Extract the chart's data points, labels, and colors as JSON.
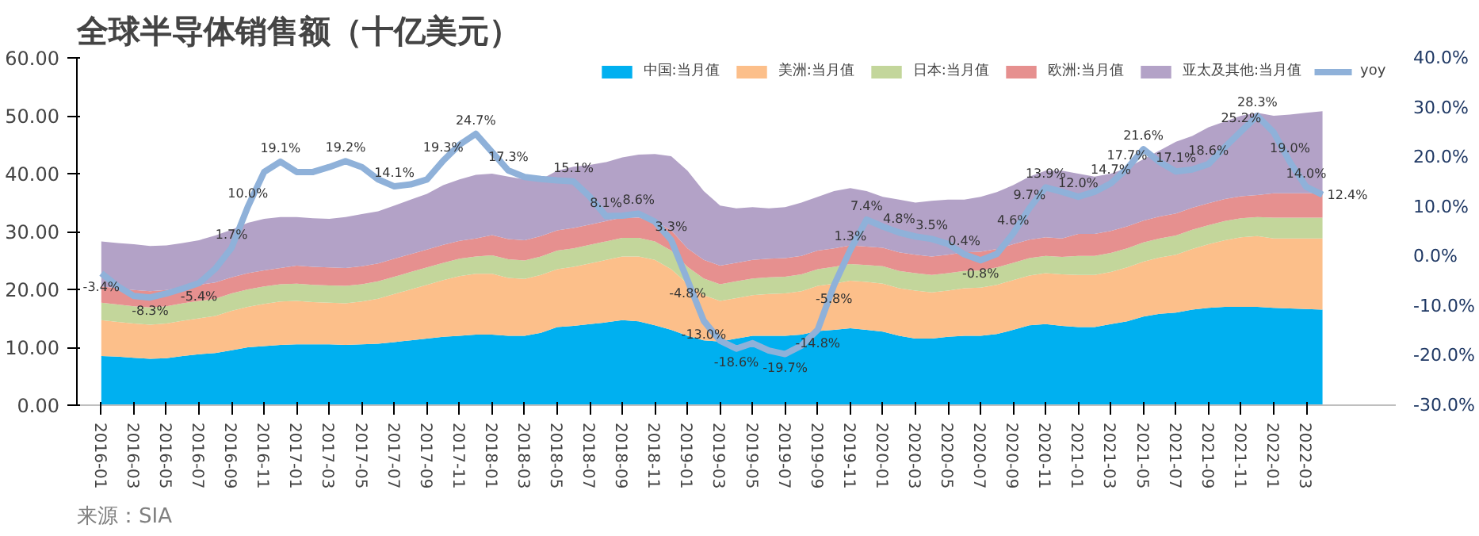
{
  "chart_data": {
    "type": "area",
    "stacked": true,
    "title": "全球半导体销售额（十亿美元）",
    "annotations": [
      "来源：SIA"
    ],
    "categories": [
      "2016-01",
      null,
      "2016-03",
      null,
      "2016-05",
      null,
      "2016-07",
      null,
      "2016-09",
      null,
      "2016-11",
      null,
      "2017-01",
      null,
      "2017-03",
      null,
      "2017-05",
      null,
      "2017-07",
      null,
      "2017-09",
      null,
      "2017-11",
      null,
      "2018-01",
      null,
      "2018-03",
      null,
      "2018-05",
      null,
      "2018-07",
      null,
      "2018-09",
      null,
      "2018-11",
      null,
      "2019-01",
      null,
      "2019-03",
      null,
      "2019-05",
      null,
      "2019-07",
      null,
      "2019-09",
      null,
      "2019-11",
      null,
      "2020-01",
      null,
      "2020-03",
      null,
      "2020-05",
      null,
      "2020-07",
      null,
      "2020-09",
      null,
      "2020-11",
      null,
      "2021-01",
      null,
      "2021-03",
      null,
      "2021-05",
      null,
      "2021-07",
      null,
      "2021-09",
      null,
      "2021-11",
      null,
      "2022-01",
      null,
      "2022-03",
      null
    ],
    "series": [
      {
        "name": "中国:当月值",
        "color": "#00b0f0",
        "values": [
          8.5,
          8.4,
          8.2,
          8.0,
          8.1,
          8.5,
          8.8,
          9.0,
          9.5,
          10.0,
          10.2,
          10.4,
          10.5,
          10.5,
          10.5,
          10.4,
          10.5,
          10.6,
          10.9,
          11.2,
          11.5,
          11.8,
          12.0,
          12.2,
          12.2,
          12.0,
          12.0,
          12.5,
          13.5,
          13.7,
          14.0,
          14.3,
          14.7,
          14.5,
          13.8,
          13.0,
          12.0,
          11.2,
          11.0,
          11.5,
          12.0,
          12.0,
          12.0,
          12.2,
          12.8,
          13.0,
          13.3,
          13.0,
          12.7,
          12.0,
          11.5,
          11.5,
          11.8,
          12.0,
          12.0,
          12.3,
          13.0,
          13.8,
          14.0,
          13.7,
          13.5,
          13.5,
          14.0,
          14.5,
          15.3,
          15.8,
          16.0,
          16.5,
          16.8,
          17.0,
          17.0,
          17.0,
          16.8,
          16.7,
          16.6,
          16.5
        ]
      },
      {
        "name": "美洲:当月值",
        "color": "#fcbf8a",
        "values": [
          6.2,
          6.0,
          5.9,
          5.9,
          6.0,
          6.1,
          6.2,
          6.4,
          6.8,
          7.0,
          7.3,
          7.5,
          7.5,
          7.3,
          7.2,
          7.2,
          7.4,
          7.8,
          8.3,
          8.8,
          9.3,
          9.8,
          10.3,
          10.5,
          10.5,
          10.0,
          9.8,
          10.0,
          10.0,
          10.2,
          10.5,
          10.8,
          11.0,
          11.2,
          11.3,
          10.5,
          9.0,
          7.8,
          7.0,
          7.0,
          7.0,
          7.2,
          7.3,
          7.5,
          7.8,
          8.0,
          8.2,
          8.3,
          8.3,
          8.2,
          8.3,
          8.0,
          8.0,
          8.2,
          8.3,
          8.5,
          8.6,
          8.6,
          8.8,
          8.9,
          9.0,
          9.0,
          9.0,
          9.3,
          9.5,
          9.7,
          10.0,
          10.5,
          11.0,
          11.5,
          12.0,
          12.2,
          12.0,
          12.1,
          12.2,
          12.3
        ]
      },
      {
        "name": "日本:当月值",
        "color": "#c3d69b",
        "values": [
          3.0,
          3.0,
          3.0,
          3.0,
          3.0,
          3.0,
          3.0,
          3.0,
          3.0,
          3.0,
          3.0,
          3.0,
          3.0,
          3.0,
          3.0,
          3.0,
          3.0,
          3.0,
          3.0,
          3.0,
          3.0,
          3.0,
          3.0,
          3.0,
          3.2,
          3.2,
          3.2,
          3.2,
          3.2,
          3.2,
          3.2,
          3.2,
          3.2,
          3.2,
          3.2,
          3.2,
          2.9,
          2.9,
          2.9,
          2.9,
          2.9,
          2.9,
          2.9,
          2.9,
          2.9,
          2.9,
          2.9,
          2.9,
          3.0,
          3.0,
          3.0,
          3.0,
          3.0,
          3.0,
          3.0,
          3.0,
          3.0,
          3.0,
          3.0,
          3.0,
          3.3,
          3.3,
          3.3,
          3.3,
          3.3,
          3.3,
          3.3,
          3.3,
          3.3,
          3.3,
          3.3,
          3.3,
          3.6,
          3.6,
          3.6,
          3.6
        ]
      },
      {
        "name": "欧洲:当月值",
        "color": "#e6908f",
        "values": [
          2.8,
          2.8,
          2.8,
          2.8,
          2.8,
          2.8,
          2.8,
          2.8,
          2.8,
          2.8,
          2.8,
          2.8,
          3.1,
          3.1,
          3.1,
          3.1,
          3.1,
          3.1,
          3.1,
          3.1,
          3.1,
          3.1,
          3.1,
          3.1,
          3.5,
          3.5,
          3.5,
          3.5,
          3.5,
          3.5,
          3.5,
          3.5,
          3.5,
          3.5,
          3.5,
          3.5,
          3.2,
          3.2,
          3.2,
          3.2,
          3.2,
          3.2,
          3.2,
          3.2,
          3.2,
          3.2,
          3.2,
          3.2,
          3.2,
          3.2,
          3.2,
          3.2,
          3.2,
          3.2,
          3.2,
          3.2,
          3.2,
          3.2,
          3.2,
          3.2,
          3.8,
          3.8,
          3.8,
          3.8,
          3.8,
          3.8,
          3.8,
          3.8,
          3.8,
          3.8,
          3.8,
          3.8,
          4.2,
          4.2,
          4.2,
          4.2
        ]
      },
      {
        "name": "亚太及其他:当月值",
        "color": "#b3a2c7",
        "values": [
          7.8,
          7.8,
          7.9,
          7.8,
          7.7,
          7.6,
          7.7,
          8.1,
          8.2,
          8.7,
          8.9,
          8.8,
          8.4,
          8.4,
          8.4,
          8.8,
          9.0,
          9.0,
          9.2,
          9.4,
          9.6,
          10.3,
          10.6,
          11.0,
          10.6,
          10.8,
          10.5,
          9.8,
          10.3,
          10.6,
          10.3,
          10.2,
          10.4,
          10.9,
          11.6,
          12.8,
          13.4,
          11.9,
          10.4,
          9.4,
          9.1,
          8.7,
          8.8,
          9.2,
          9.3,
          9.9,
          9.9,
          9.6,
          8.8,
          9.1,
          9.0,
          9.6,
          9.5,
          9.1,
          9.5,
          9.8,
          10.2,
          10.9,
          11.5,
          11.7,
          10.4,
          9.9,
          9.9,
          10.1,
          10.6,
          11.4,
          12.4,
          12.4,
          13.1,
          13.4,
          13.9,
          14.2,
          13.4,
          13.6,
          13.9,
          14.2
        ]
      },
      {
        "name": "yoy",
        "type": "line",
        "axis": "y2",
        "color": "#8fb1d9",
        "values": [
          -3.4,
          -6,
          -8,
          -8.3,
          -7.5,
          -6.5,
          -5.4,
          -2.5,
          1.7,
          10.0,
          17.0,
          19.1,
          17,
          17,
          18,
          19.2,
          18,
          15.5,
          14.1,
          14.5,
          15.5,
          19.3,
          22.5,
          24.7,
          21,
          17.3,
          16,
          15.6,
          15.3,
          15.1,
          12,
          8.1,
          8.2,
          8.6,
          7,
          3.3,
          -4.8,
          -13.0,
          -17,
          -18.6,
          -17.5,
          -19,
          -19.7,
          -18,
          -14.8,
          -5.8,
          1.3,
          7.4,
          6,
          4.8,
          4,
          3.5,
          2.5,
          0.4,
          -0.8,
          0.5,
          4.6,
          9.7,
          13.9,
          13,
          12.0,
          13,
          14.7,
          17.7,
          21.6,
          19,
          17.1,
          17.5,
          18.6,
          22,
          25.2,
          28.3,
          25,
          19.0,
          14.0,
          12.4
        ],
        "value_labels": [
          "-3.4%",
          null,
          null,
          "-8.3%",
          null,
          null,
          "-5.4%",
          null,
          "1.7%",
          "10.0%",
          null,
          "19.1%",
          null,
          null,
          null,
          "19.2%",
          null,
          null,
          "14.1%",
          null,
          null,
          "19.3%",
          null,
          "24.7%",
          null,
          "17.3%",
          null,
          null,
          null,
          "15.1%",
          null,
          "8.1%",
          null,
          "8.6%",
          null,
          "3.3%",
          "-4.8%",
          "-13.0%",
          null,
          "-18.6%",
          null,
          null,
          "-19.7%",
          null,
          "-14.8%",
          "-5.8%",
          "1.3%",
          "7.4%",
          null,
          "4.8%",
          null,
          "3.5%",
          null,
          "0.4%",
          "-0.8%",
          null,
          "4.6%",
          "9.7%",
          "13.9%",
          null,
          "12.0%",
          null,
          "14.7%",
          "17.7%",
          "21.6%",
          null,
          "17.1%",
          null,
          "18.6%",
          null,
          "25.2%",
          "28.3%",
          null,
          "19.0%",
          "14.0%",
          "12.4%"
        ]
      }
    ],
    "ylim": [
      0,
      60
    ],
    "yticks": [
      {
        "value": 0,
        "label": "0.00"
      },
      {
        "value": 10,
        "label": "10.00"
      },
      {
        "value": 20,
        "label": "20.00"
      },
      {
        "value": 30,
        "label": "30.00"
      },
      {
        "value": 40,
        "label": "40.00"
      },
      {
        "value": 50,
        "label": "50.00"
      },
      {
        "value": 60,
        "label": "60.00"
      }
    ],
    "y2lim": [
      -30,
      40
    ],
    "y2ticks": [
      {
        "value": -30,
        "label": "-30.0%"
      },
      {
        "value": -20,
        "label": "-20.0%"
      },
      {
        "value": -10,
        "label": "-10.0%"
      },
      {
        "value": 0,
        "label": "0.0%"
      },
      {
        "value": 10,
        "label": "10.0%"
      },
      {
        "value": 20,
        "label": "20.0%"
      },
      {
        "value": 30,
        "label": "30.0%"
      },
      {
        "value": 40,
        "label": "40.0%"
      }
    ],
    "legend": "top right"
  }
}
